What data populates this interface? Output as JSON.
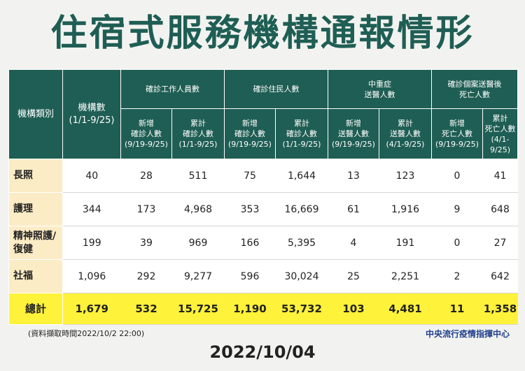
{
  "title": "住宿式服務機構通報情形",
  "headers": {
    "category": "機構類別",
    "institution_count": "機構數\n(1/1-9/25)",
    "staff_group": "確診工作人員數",
    "resident_group": "確診住民人數",
    "severe_group": "中重症\n送醫人數",
    "death_group": "確診個案送醫後\n死亡人數",
    "staff_new": "新增\n確診人數\n(9/19-9/25)",
    "staff_total": "累計\n確診人數\n(1/1-9/25)",
    "resident_new": "新增\n確診人數\n(9/19-9/25)",
    "resident_total": "累計\n確診人數\n(1/1-9/25)",
    "severe_new": "新增\n送醫人數\n(9/19-9/25)",
    "severe_total": "累計\n送醫人數\n(4/1-9/25)",
    "death_new": "新增\n死亡人數\n(9/19-9/25)",
    "death_total": "累計\n死亡人數\n(4/1-9/25)"
  },
  "rows": [
    {
      "category": "長照",
      "cells": [
        "40",
        "28",
        "511",
        "75",
        "1,644",
        "13",
        "123",
        "0",
        "41"
      ]
    },
    {
      "category": "護理",
      "cells": [
        "344",
        "173",
        "4,968",
        "353",
        "16,669",
        "61",
        "1,916",
        "9",
        "648"
      ]
    },
    {
      "category": "精神照護/\n復健",
      "cells": [
        "199",
        "39",
        "969",
        "166",
        "5,395",
        "4",
        "191",
        "0",
        "27"
      ]
    },
    {
      "category": "社福",
      "cells": [
        "1,096",
        "292",
        "9,277",
        "596",
        "30,024",
        "25",
        "2,251",
        "2",
        "642"
      ]
    },
    {
      "category": "總計",
      "cells": [
        "1,679",
        "532",
        "15,725",
        "1,190",
        "53,732",
        "103",
        "4,481",
        "11",
        "1,358"
      ]
    }
  ],
  "footer": {
    "note": "(資料擷取時間2022/10/2  22:00)",
    "agency": "中央流行疫情指揮中心",
    "date": "2022/10/04"
  },
  "colors": {
    "header_bg": "#1f5e54",
    "category_bg": "#fcecc6",
    "total_bg": "#fff23a",
    "agency_text": "#1f3f8a"
  }
}
